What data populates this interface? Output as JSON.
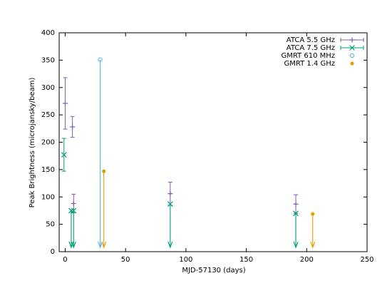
{
  "chart_data": {
    "type": "scatter",
    "x_label": "MJD-57130 (days)",
    "y_label": "Peak Brightness (microjansky/beam)",
    "xlim": [
      -5,
      250
    ],
    "xticks": [
      0,
      50,
      100,
      150,
      200,
      250
    ],
    "ylim": [
      0,
      400
    ],
    "yticks": [
      0,
      50,
      100,
      150,
      200,
      250,
      300,
      350,
      400
    ],
    "grid": false,
    "legend": "top-right",
    "series": [
      {
        "name": "ATCA 5.5 GHz",
        "color": "#7b5fb3",
        "marker": "plus",
        "errorbars": true,
        "x": [
          0,
          6,
          7,
          87,
          191
        ],
        "values": [
          271,
          228,
          88,
          106,
          87
        ],
        "errors": [
          47,
          19,
          17,
          21,
          17
        ],
        "upper_limit": [
          false,
          false,
          false,
          false,
          false
        ]
      },
      {
        "name": "ATCA 7.5 GHz",
        "color": "#00a078",
        "marker": "cross",
        "errorbars": true,
        "x": [
          -1,
          5,
          7,
          87,
          191
        ],
        "values": [
          177,
          75,
          75,
          87,
          70
        ],
        "errors": [
          30,
          null,
          null,
          null,
          null
        ],
        "upper_limit": [
          false,
          true,
          true,
          true,
          true
        ]
      },
      {
        "name": "GMRT 610 MHz",
        "color": "#56b4e9",
        "marker": "open-circle",
        "errorbars": false,
        "x": [
          29
        ],
        "values": [
          351
        ],
        "upper_limit": [
          true
        ]
      },
      {
        "name": "GMRT 1.4 GHz",
        "color": "#e69f00",
        "marker": "filled-circle",
        "errorbars": false,
        "x": [
          32,
          205
        ],
        "values": [
          147,
          69
        ],
        "upper_limit": [
          true,
          true
        ]
      }
    ]
  }
}
